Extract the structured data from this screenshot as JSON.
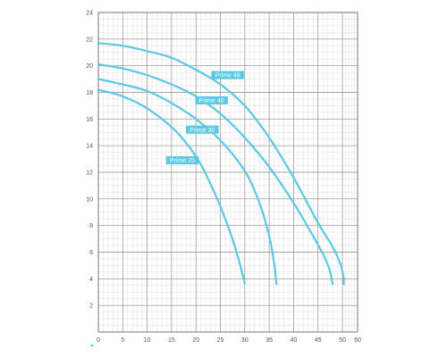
{
  "chart_data": {
    "type": "line",
    "title": "",
    "xlabel": "",
    "ylabel": "",
    "xlim": [
      0,
      60
    ],
    "ylim": [
      0,
      24
    ],
    "x_ticks": [
      0,
      5,
      10,
      15,
      20,
      25,
      30,
      35,
      40,
      45,
      50,
      60
    ],
    "y_ticks": [
      2,
      4,
      6,
      8,
      10,
      12,
      14,
      16,
      18,
      20,
      22,
      24
    ],
    "grid": true,
    "line_color": "#5bc8e6",
    "label_bg_color": "#5bc8e6",
    "series": [
      {
        "name": "Prime 48",
        "x": [
          0,
          5,
          10,
          15,
          20,
          25,
          30,
          35,
          40,
          45,
          48,
          49.5,
          50.5,
          51
        ],
        "y": [
          21.7,
          21.5,
          21.1,
          20.6,
          19.7,
          18.6,
          17,
          14.6,
          11.6,
          8.2,
          6.4,
          5.2,
          4.3,
          3.6
        ]
      },
      {
        "name": "Prime 40",
        "x": [
          0,
          5,
          10,
          15,
          20,
          25,
          30,
          35,
          40,
          44,
          46.5,
          47.5,
          48
        ],
        "y": [
          20.1,
          19.8,
          19.3,
          18.6,
          17.7,
          16.4,
          14.6,
          12.4,
          9.7,
          7.2,
          5.5,
          4.5,
          3.6
        ]
      },
      {
        "name": "Prime 30",
        "x": [
          0,
          5,
          10,
          15,
          20,
          25,
          30,
          33,
          35,
          36,
          36.5
        ],
        "y": [
          19,
          18.6,
          18.1,
          17.2,
          16,
          14.4,
          12.1,
          9.7,
          7.2,
          5.2,
          3.6
        ]
      },
      {
        "name": "Prime 25",
        "x": [
          0,
          5,
          10,
          15,
          18,
          21,
          24,
          26,
          28,
          29.5,
          30
        ],
        "y": [
          18.2,
          17.7,
          16.8,
          15.4,
          14.2,
          12.6,
          10.3,
          8.5,
          6.4,
          4.4,
          3.6
        ]
      }
    ]
  }
}
